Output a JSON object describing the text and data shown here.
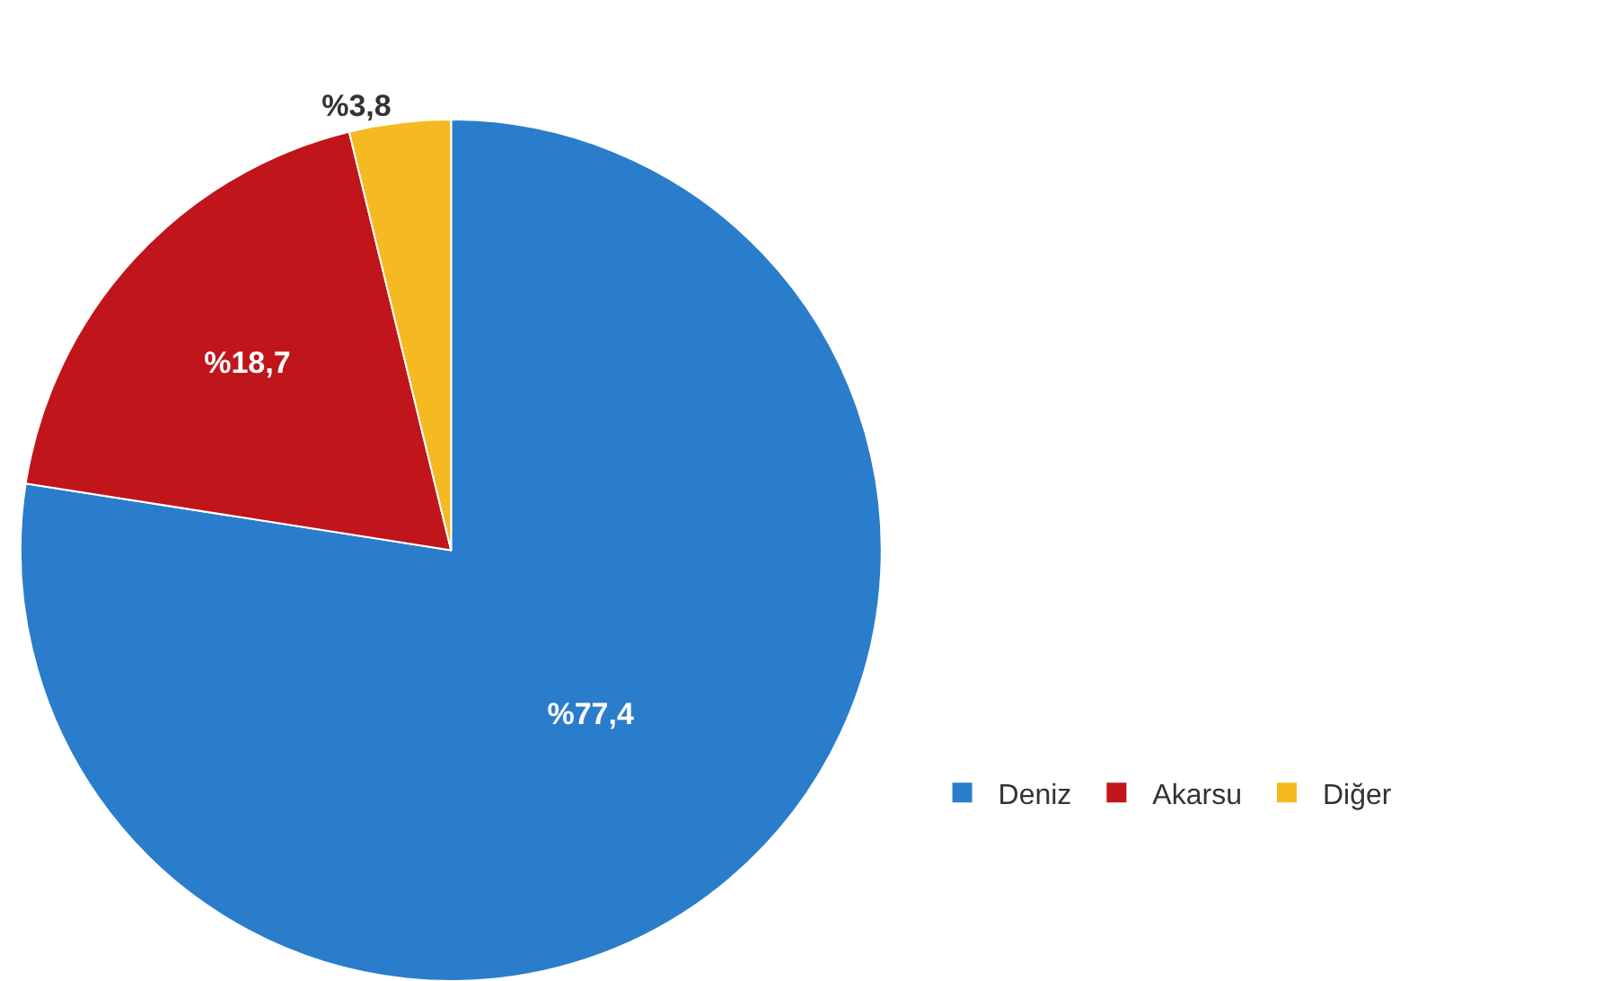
{
  "chart_data": {
    "type": "pie",
    "categories": [
      "Deniz",
      "Akarsu",
      "Diğer"
    ],
    "values": [
      77.4,
      18.7,
      3.8
    ],
    "value_labels": [
      "%77,4",
      "%18,7",
      "%3,8"
    ],
    "colors": [
      "#2a7dcb",
      "#c0151b",
      "#f5b921"
    ],
    "legend": "right"
  }
}
